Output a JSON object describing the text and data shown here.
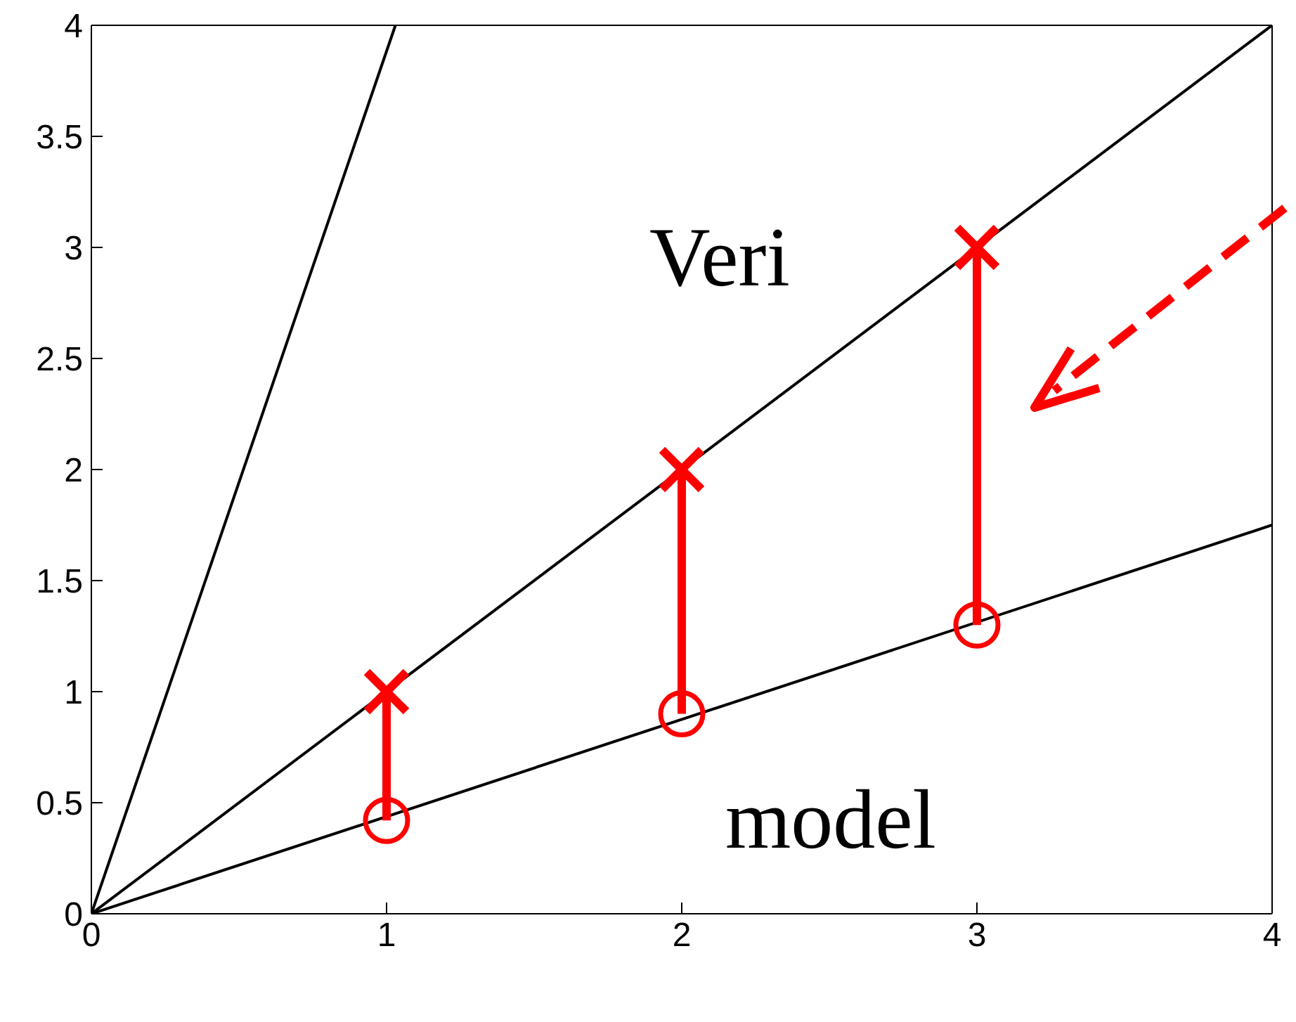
{
  "chart_data": {
    "type": "line",
    "xlim": [
      0,
      4
    ],
    "ylim": [
      0,
      4
    ],
    "xticks": [
      0,
      1,
      2,
      3,
      4
    ],
    "yticks": [
      0,
      0.5,
      1,
      1.5,
      2,
      2.5,
      3,
      3.5,
      4
    ],
    "series": [
      {
        "color": "#000000",
        "x": [
          0,
          1.03
        ],
        "values": [
          0,
          4
        ]
      },
      {
        "color": "#000000",
        "x": [
          0,
          4
        ],
        "values": [
          0,
          4
        ]
      },
      {
        "color": "#000000",
        "x": [
          0,
          4
        ],
        "values": [
          0,
          1.75
        ]
      },
      {
        "color": "#ff0000",
        "x": [
          1,
          1
        ],
        "values": [
          0.42,
          1
        ]
      },
      {
        "color": "#ff0000",
        "x": [
          2,
          2
        ],
        "values": [
          0.9,
          2
        ]
      },
      {
        "color": "#ff0000",
        "x": [
          3,
          3
        ],
        "values": [
          1.3,
          3
        ]
      },
      {
        "type": "scatter",
        "color": "#ff0000",
        "x": [
          1,
          2,
          3
        ],
        "values": [
          1,
          2,
          3
        ],
        "marker": "cross"
      },
      {
        "type": "scatter",
        "color": "#ff0000",
        "x": [
          1,
          2,
          3
        ],
        "values": [
          0.42,
          0.9,
          1.3
        ],
        "marker": "circle"
      }
    ],
    "annotations": [
      "Veri",
      "model"
    ]
  }
}
